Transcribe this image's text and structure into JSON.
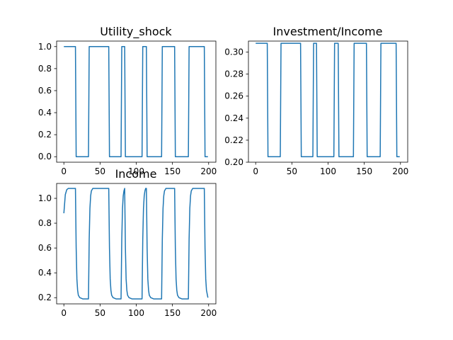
{
  "figure": {
    "background": "#ffffff",
    "line_color": "#1f77b4"
  },
  "chart_data": [
    {
      "type": "line",
      "title": "Utility_shock",
      "xlim": [
        -10,
        210
      ],
      "ylim": [
        -0.05,
        1.05
      ],
      "xticks": [
        0,
        50,
        100,
        150,
        200
      ],
      "yticks": [
        0.0,
        0.2,
        0.4,
        0.6,
        0.8,
        1.0
      ],
      "ytick_decimals": 1,
      "series": [
        {
          "x": [
            0,
            16,
            17,
            34,
            35,
            62,
            63,
            79,
            80,
            84,
            85,
            108,
            109,
            114,
            115,
            135,
            136,
            153,
            154,
            172,
            173,
            194,
            195,
            199
          ],
          "y": [
            1,
            1,
            0,
            0,
            1,
            1,
            0,
            0,
            1,
            1,
            0,
            0,
            1,
            1,
            0,
            0,
            1,
            1,
            0,
            0,
            1,
            1,
            0,
            0
          ]
        }
      ]
    },
    {
      "type": "line",
      "title": "Investment/Income",
      "xlim": [
        -10,
        210
      ],
      "ylim": [
        0.2,
        0.31
      ],
      "xticks": [
        0,
        50,
        100,
        150,
        200
      ],
      "yticks": [
        0.2,
        0.22,
        0.24,
        0.26,
        0.28,
        0.3
      ],
      "ytick_decimals": 2,
      "series": [
        {
          "x": [
            0,
            16,
            17,
            34,
            35,
            62,
            63,
            79,
            80,
            84,
            85,
            108,
            109,
            114,
            115,
            135,
            136,
            153,
            154,
            172,
            173,
            194,
            195,
            199
          ],
          "y": [
            0.308,
            0.308,
            0.205,
            0.205,
            0.308,
            0.308,
            0.205,
            0.205,
            0.308,
            0.308,
            0.205,
            0.205,
            0.308,
            0.308,
            0.205,
            0.205,
            0.308,
            0.308,
            0.205,
            0.205,
            0.308,
            0.308,
            0.205,
            0.205
          ]
        }
      ]
    },
    {
      "type": "line",
      "title": "Income",
      "xlim": [
        -10,
        210
      ],
      "ylim": [
        0.15,
        1.12
      ],
      "xticks": [
        0,
        50,
        100,
        150,
        200
      ],
      "yticks": [
        0.2,
        0.4,
        0.6,
        0.8,
        1.0
      ],
      "ytick_decimals": 1,
      "series": [
        {
          "x": [
            0,
            2,
            4,
            6,
            10,
            16,
            17,
            18,
            19,
            20,
            22,
            26,
            34,
            35,
            36,
            37,
            38,
            40,
            44,
            62,
            63,
            64,
            65,
            66,
            68,
            72,
            79,
            80,
            81,
            82,
            83,
            84,
            85,
            86,
            87,
            88,
            90,
            94,
            108,
            109,
            110,
            111,
            112,
            113,
            114,
            115,
            116,
            117,
            118,
            120,
            124,
            135,
            136,
            137,
            138,
            139,
            141,
            145,
            153,
            154,
            155,
            156,
            157,
            159,
            163,
            172,
            173,
            174,
            175,
            176,
            178,
            182,
            194,
            195,
            196,
            197,
            199
          ],
          "y": [
            0.88,
            1.03,
            1.07,
            1.08,
            1.08,
            1.08,
            0.6,
            0.35,
            0.26,
            0.22,
            0.2,
            0.19,
            0.19,
            0.67,
            0.92,
            1.02,
            1.06,
            1.08,
            1.08,
            1.08,
            0.6,
            0.35,
            0.26,
            0.22,
            0.2,
            0.19,
            0.19,
            0.67,
            0.92,
            1.02,
            1.06,
            1.08,
            0.6,
            0.35,
            0.26,
            0.22,
            0.2,
            0.19,
            0.19,
            0.67,
            0.92,
            1.02,
            1.06,
            1.08,
            1.08,
            0.6,
            0.35,
            0.26,
            0.22,
            0.2,
            0.19,
            0.19,
            0.67,
            0.92,
            1.02,
            1.06,
            1.08,
            1.08,
            1.08,
            0.6,
            0.35,
            0.26,
            0.22,
            0.2,
            0.19,
            0.19,
            0.67,
            0.92,
            1.02,
            1.06,
            1.08,
            1.08,
            1.08,
            0.6,
            0.35,
            0.26,
            0.2
          ]
        }
      ]
    }
  ]
}
